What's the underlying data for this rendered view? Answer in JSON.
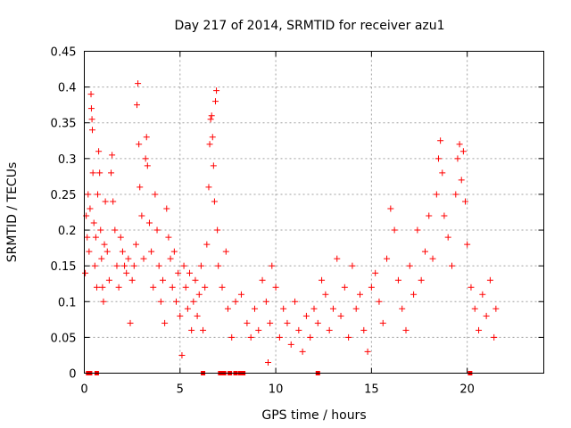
{
  "chart_data": {
    "type": "scatter",
    "title": "Day 217 of 2014, SRMTID for receiver azu1",
    "xlabel": "GPS time / hours",
    "ylabel": "SRMTID / TECUs",
    "xlim": [
      0,
      24
    ],
    "ylim": [
      0,
      0.45
    ],
    "grid": true,
    "marker": "+",
    "color": "#ff0000",
    "x_ticks": [
      0,
      5,
      10,
      15,
      20
    ],
    "x_tick_labels": [
      "0",
      "5",
      "10",
      "15",
      "20"
    ],
    "y_ticks": [
      0,
      0.05,
      0.1,
      0.15,
      0.2,
      0.25,
      0.3,
      0.35,
      0.4,
      0.45
    ],
    "y_tick_labels": [
      "0",
      "0.05",
      "0.1",
      "0.15",
      "0.2",
      "0.25",
      "0.3",
      "0.35",
      "0.4",
      "0.45"
    ],
    "points": [
      [
        0.05,
        0.14
      ],
      [
        0.1,
        0.22
      ],
      [
        0.15,
        0.19
      ],
      [
        0.2,
        0.25
      ],
      [
        0.25,
        0.17
      ],
      [
        0.3,
        0.23
      ],
      [
        0.35,
        0.39
      ],
      [
        0.37,
        0.37
      ],
      [
        0.4,
        0.355
      ],
      [
        0.42,
        0.34
      ],
      [
        0.45,
        0.28
      ],
      [
        0.5,
        0.21
      ],
      [
        0.55,
        0.15
      ],
      [
        0.6,
        0.19
      ],
      [
        0.65,
        0.12
      ],
      [
        0.7,
        0.25
      ],
      [
        0.75,
        0.31
      ],
      [
        0.8,
        0.28
      ],
      [
        0.85,
        0.2
      ],
      [
        0.9,
        0.16
      ],
      [
        0.95,
        0.12
      ],
      [
        1.0,
        0.1
      ],
      [
        1.05,
        0.18
      ],
      [
        1.1,
        0.24
      ],
      [
        1.2,
        0.17
      ],
      [
        1.3,
        0.13
      ],
      [
        1.4,
        0.28
      ],
      [
        1.45,
        0.305
      ],
      [
        1.5,
        0.24
      ],
      [
        1.6,
        0.2
      ],
      [
        1.7,
        0.15
      ],
      [
        1.8,
        0.12
      ],
      [
        1.9,
        0.19
      ],
      [
        2.0,
        0.17
      ],
      [
        2.1,
        0.15
      ],
      [
        2.2,
        0.14
      ],
      [
        2.3,
        0.16
      ],
      [
        2.4,
        0.07
      ],
      [
        2.5,
        0.13
      ],
      [
        2.6,
        0.15
      ],
      [
        2.7,
        0.18
      ],
      [
        2.75,
        0.375
      ],
      [
        2.8,
        0.405
      ],
      [
        2.85,
        0.32
      ],
      [
        2.9,
        0.26
      ],
      [
        3.0,
        0.22
      ],
      [
        3.1,
        0.16
      ],
      [
        3.2,
        0.3
      ],
      [
        3.25,
        0.33
      ],
      [
        3.3,
        0.29
      ],
      [
        3.4,
        0.21
      ],
      [
        3.5,
        0.17
      ],
      [
        3.6,
        0.12
      ],
      [
        3.7,
        0.25
      ],
      [
        3.8,
        0.2
      ],
      [
        3.9,
        0.15
      ],
      [
        4.0,
        0.1
      ],
      [
        4.1,
        0.13
      ],
      [
        4.2,
        0.07
      ],
      [
        4.3,
        0.23
      ],
      [
        4.4,
        0.19
      ],
      [
        4.5,
        0.16
      ],
      [
        4.6,
        0.12
      ],
      [
        4.7,
        0.17
      ],
      [
        4.8,
        0.1
      ],
      [
        4.9,
        0.14
      ],
      [
        5.0,
        0.08
      ],
      [
        5.1,
        0.025
      ],
      [
        5.2,
        0.15
      ],
      [
        5.3,
        0.12
      ],
      [
        5.4,
        0.09
      ],
      [
        5.5,
        0.14
      ],
      [
        5.6,
        0.06
      ],
      [
        5.7,
        0.1
      ],
      [
        5.8,
        0.13
      ],
      [
        5.9,
        0.08
      ],
      [
        6.0,
        0.11
      ],
      [
        6.1,
        0.15
      ],
      [
        6.2,
        0.06
      ],
      [
        6.3,
        0.12
      ],
      [
        6.4,
        0.18
      ],
      [
        6.5,
        0.26
      ],
      [
        6.55,
        0.32
      ],
      [
        6.6,
        0.355
      ],
      [
        6.65,
        0.36
      ],
      [
        6.7,
        0.33
      ],
      [
        6.75,
        0.29
      ],
      [
        6.8,
        0.24
      ],
      [
        6.85,
        0.38
      ],
      [
        6.9,
        0.395
      ],
      [
        6.95,
        0.2
      ],
      [
        7.0,
        0.15
      ],
      [
        7.2,
        0.12
      ],
      [
        7.4,
        0.17
      ],
      [
        7.5,
        0.09
      ],
      [
        7.7,
        0.05
      ],
      [
        7.9,
        0.1
      ],
      [
        8.2,
        0.11
      ],
      [
        8.5,
        0.07
      ],
      [
        8.7,
        0.05
      ],
      [
        8.9,
        0.09
      ],
      [
        9.1,
        0.06
      ],
      [
        9.3,
        0.13
      ],
      [
        9.5,
        0.1
      ],
      [
        9.6,
        0.015
      ],
      [
        9.7,
        0.07
      ],
      [
        9.8,
        0.15
      ],
      [
        10.0,
        0.12
      ],
      [
        10.2,
        0.05
      ],
      [
        10.4,
        0.09
      ],
      [
        10.6,
        0.07
      ],
      [
        10.8,
        0.04
      ],
      [
        11.0,
        0.1
      ],
      [
        11.2,
        0.06
      ],
      [
        11.4,
        0.03
      ],
      [
        11.6,
        0.08
      ],
      [
        11.8,
        0.05
      ],
      [
        12.0,
        0.09
      ],
      [
        12.2,
        0.07
      ],
      [
        12.4,
        0.13
      ],
      [
        12.6,
        0.11
      ],
      [
        12.8,
        0.06
      ],
      [
        13.0,
        0.09
      ],
      [
        13.2,
        0.16
      ],
      [
        13.4,
        0.08
      ],
      [
        13.6,
        0.12
      ],
      [
        13.8,
        0.05
      ],
      [
        14.0,
        0.15
      ],
      [
        14.2,
        0.09
      ],
      [
        14.4,
        0.11
      ],
      [
        14.6,
        0.06
      ],
      [
        14.8,
        0.03
      ],
      [
        15.0,
        0.12
      ],
      [
        15.2,
        0.14
      ],
      [
        15.4,
        0.1
      ],
      [
        15.6,
        0.07
      ],
      [
        15.8,
        0.16
      ],
      [
        16.0,
        0.23
      ],
      [
        16.2,
        0.2
      ],
      [
        16.4,
        0.13
      ],
      [
        16.6,
        0.09
      ],
      [
        16.8,
        0.06
      ],
      [
        17.0,
        0.15
      ],
      [
        17.2,
        0.11
      ],
      [
        17.4,
        0.2
      ],
      [
        17.6,
        0.13
      ],
      [
        17.8,
        0.17
      ],
      [
        18.0,
        0.22
      ],
      [
        18.2,
        0.16
      ],
      [
        18.4,
        0.25
      ],
      [
        18.5,
        0.3
      ],
      [
        18.6,
        0.325
      ],
      [
        18.7,
        0.28
      ],
      [
        18.8,
        0.22
      ],
      [
        19.0,
        0.19
      ],
      [
        19.2,
        0.15
      ],
      [
        19.4,
        0.25
      ],
      [
        19.5,
        0.3
      ],
      [
        19.6,
        0.32
      ],
      [
        19.7,
        0.27
      ],
      [
        19.8,
        0.31
      ],
      [
        19.9,
        0.24
      ],
      [
        20.0,
        0.18
      ],
      [
        20.2,
        0.12
      ],
      [
        20.4,
        0.09
      ],
      [
        20.6,
        0.06
      ],
      [
        20.8,
        0.11
      ],
      [
        21.0,
        0.08
      ],
      [
        21.2,
        0.13
      ],
      [
        21.4,
        0.05
      ],
      [
        21.5,
        0.09
      ]
    ],
    "zero_markers_x": [
      0.2,
      0.3,
      0.65,
      6.2,
      7.1,
      7.2,
      7.3,
      7.6,
      7.9,
      8.15,
      8.3,
      12.2,
      20.15
    ]
  }
}
